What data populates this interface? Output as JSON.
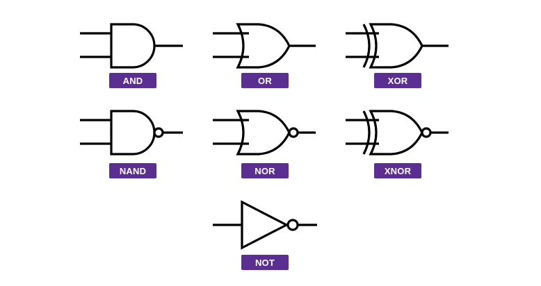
{
  "gates": [
    {
      "id": "and",
      "label": "AND",
      "icon": "and-gate-icon"
    },
    {
      "id": "or",
      "label": "OR",
      "icon": "or-gate-icon"
    },
    {
      "id": "xor",
      "label": "XOR",
      "icon": "xor-gate-icon"
    },
    {
      "id": "nand",
      "label": "NAND",
      "icon": "nand-gate-icon"
    },
    {
      "id": "nor",
      "label": "NOR",
      "icon": "nor-gate-icon"
    },
    {
      "id": "xnor",
      "label": "XNOR",
      "icon": "xnor-gate-icon"
    },
    {
      "id": "not",
      "label": "NOT",
      "icon": "not-gate-icon"
    }
  ],
  "colors": {
    "label_background": "#5b2e91",
    "label_text": "#ffffff",
    "stroke": "#000000"
  }
}
